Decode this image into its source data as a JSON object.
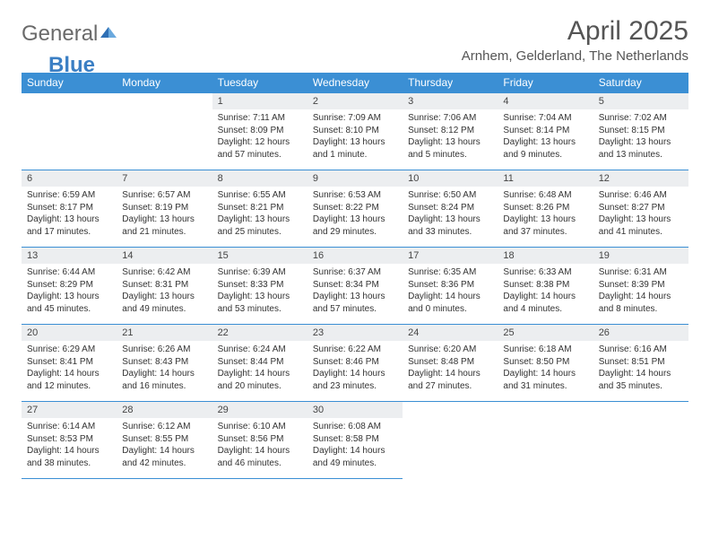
{
  "brand": {
    "part1": "General",
    "part2": "Blue"
  },
  "title": "April 2025",
  "location": "Arnhem, Gelderland, The Netherlands",
  "colors": {
    "header_bg": "#3b8fd4",
    "header_text": "#ffffff",
    "daynum_bg": "#eceef0",
    "border": "#3b8fd4",
    "text": "#333333",
    "brand_gray": "#6a6a6a",
    "brand_blue": "#3b7fc4",
    "page_bg": "#ffffff"
  },
  "typography": {
    "title_fontsize": 30,
    "location_fontsize": 15,
    "dayheader_fontsize": 12,
    "daynum_fontsize": 11,
    "body_fontsize": 10
  },
  "day_headers": [
    "Sunday",
    "Monday",
    "Tuesday",
    "Wednesday",
    "Thursday",
    "Friday",
    "Saturday"
  ],
  "weeks": [
    [
      null,
      null,
      {
        "n": "1",
        "sunrise": "Sunrise: 7:11 AM",
        "sunset": "Sunset: 8:09 PM",
        "day1": "Daylight: 12 hours",
        "day2": "and 57 minutes."
      },
      {
        "n": "2",
        "sunrise": "Sunrise: 7:09 AM",
        "sunset": "Sunset: 8:10 PM",
        "day1": "Daylight: 13 hours",
        "day2": "and 1 minute."
      },
      {
        "n": "3",
        "sunrise": "Sunrise: 7:06 AM",
        "sunset": "Sunset: 8:12 PM",
        "day1": "Daylight: 13 hours",
        "day2": "and 5 minutes."
      },
      {
        "n": "4",
        "sunrise": "Sunrise: 7:04 AM",
        "sunset": "Sunset: 8:14 PM",
        "day1": "Daylight: 13 hours",
        "day2": "and 9 minutes."
      },
      {
        "n": "5",
        "sunrise": "Sunrise: 7:02 AM",
        "sunset": "Sunset: 8:15 PM",
        "day1": "Daylight: 13 hours",
        "day2": "and 13 minutes."
      }
    ],
    [
      {
        "n": "6",
        "sunrise": "Sunrise: 6:59 AM",
        "sunset": "Sunset: 8:17 PM",
        "day1": "Daylight: 13 hours",
        "day2": "and 17 minutes."
      },
      {
        "n": "7",
        "sunrise": "Sunrise: 6:57 AM",
        "sunset": "Sunset: 8:19 PM",
        "day1": "Daylight: 13 hours",
        "day2": "and 21 minutes."
      },
      {
        "n": "8",
        "sunrise": "Sunrise: 6:55 AM",
        "sunset": "Sunset: 8:21 PM",
        "day1": "Daylight: 13 hours",
        "day2": "and 25 minutes."
      },
      {
        "n": "9",
        "sunrise": "Sunrise: 6:53 AM",
        "sunset": "Sunset: 8:22 PM",
        "day1": "Daylight: 13 hours",
        "day2": "and 29 minutes."
      },
      {
        "n": "10",
        "sunrise": "Sunrise: 6:50 AM",
        "sunset": "Sunset: 8:24 PM",
        "day1": "Daylight: 13 hours",
        "day2": "and 33 minutes."
      },
      {
        "n": "11",
        "sunrise": "Sunrise: 6:48 AM",
        "sunset": "Sunset: 8:26 PM",
        "day1": "Daylight: 13 hours",
        "day2": "and 37 minutes."
      },
      {
        "n": "12",
        "sunrise": "Sunrise: 6:46 AM",
        "sunset": "Sunset: 8:27 PM",
        "day1": "Daylight: 13 hours",
        "day2": "and 41 minutes."
      }
    ],
    [
      {
        "n": "13",
        "sunrise": "Sunrise: 6:44 AM",
        "sunset": "Sunset: 8:29 PM",
        "day1": "Daylight: 13 hours",
        "day2": "and 45 minutes."
      },
      {
        "n": "14",
        "sunrise": "Sunrise: 6:42 AM",
        "sunset": "Sunset: 8:31 PM",
        "day1": "Daylight: 13 hours",
        "day2": "and 49 minutes."
      },
      {
        "n": "15",
        "sunrise": "Sunrise: 6:39 AM",
        "sunset": "Sunset: 8:33 PM",
        "day1": "Daylight: 13 hours",
        "day2": "and 53 minutes."
      },
      {
        "n": "16",
        "sunrise": "Sunrise: 6:37 AM",
        "sunset": "Sunset: 8:34 PM",
        "day1": "Daylight: 13 hours",
        "day2": "and 57 minutes."
      },
      {
        "n": "17",
        "sunrise": "Sunrise: 6:35 AM",
        "sunset": "Sunset: 8:36 PM",
        "day1": "Daylight: 14 hours",
        "day2": "and 0 minutes."
      },
      {
        "n": "18",
        "sunrise": "Sunrise: 6:33 AM",
        "sunset": "Sunset: 8:38 PM",
        "day1": "Daylight: 14 hours",
        "day2": "and 4 minutes."
      },
      {
        "n": "19",
        "sunrise": "Sunrise: 6:31 AM",
        "sunset": "Sunset: 8:39 PM",
        "day1": "Daylight: 14 hours",
        "day2": "and 8 minutes."
      }
    ],
    [
      {
        "n": "20",
        "sunrise": "Sunrise: 6:29 AM",
        "sunset": "Sunset: 8:41 PM",
        "day1": "Daylight: 14 hours",
        "day2": "and 12 minutes."
      },
      {
        "n": "21",
        "sunrise": "Sunrise: 6:26 AM",
        "sunset": "Sunset: 8:43 PM",
        "day1": "Daylight: 14 hours",
        "day2": "and 16 minutes."
      },
      {
        "n": "22",
        "sunrise": "Sunrise: 6:24 AM",
        "sunset": "Sunset: 8:44 PM",
        "day1": "Daylight: 14 hours",
        "day2": "and 20 minutes."
      },
      {
        "n": "23",
        "sunrise": "Sunrise: 6:22 AM",
        "sunset": "Sunset: 8:46 PM",
        "day1": "Daylight: 14 hours",
        "day2": "and 23 minutes."
      },
      {
        "n": "24",
        "sunrise": "Sunrise: 6:20 AM",
        "sunset": "Sunset: 8:48 PM",
        "day1": "Daylight: 14 hours",
        "day2": "and 27 minutes."
      },
      {
        "n": "25",
        "sunrise": "Sunrise: 6:18 AM",
        "sunset": "Sunset: 8:50 PM",
        "day1": "Daylight: 14 hours",
        "day2": "and 31 minutes."
      },
      {
        "n": "26",
        "sunrise": "Sunrise: 6:16 AM",
        "sunset": "Sunset: 8:51 PM",
        "day1": "Daylight: 14 hours",
        "day2": "and 35 minutes."
      }
    ],
    [
      {
        "n": "27",
        "sunrise": "Sunrise: 6:14 AM",
        "sunset": "Sunset: 8:53 PM",
        "day1": "Daylight: 14 hours",
        "day2": "and 38 minutes."
      },
      {
        "n": "28",
        "sunrise": "Sunrise: 6:12 AM",
        "sunset": "Sunset: 8:55 PM",
        "day1": "Daylight: 14 hours",
        "day2": "and 42 minutes."
      },
      {
        "n": "29",
        "sunrise": "Sunrise: 6:10 AM",
        "sunset": "Sunset: 8:56 PM",
        "day1": "Daylight: 14 hours",
        "day2": "and 46 minutes."
      },
      {
        "n": "30",
        "sunrise": "Sunrise: 6:08 AM",
        "sunset": "Sunset: 8:58 PM",
        "day1": "Daylight: 14 hours",
        "day2": "and 49 minutes."
      },
      null,
      null,
      null
    ]
  ]
}
